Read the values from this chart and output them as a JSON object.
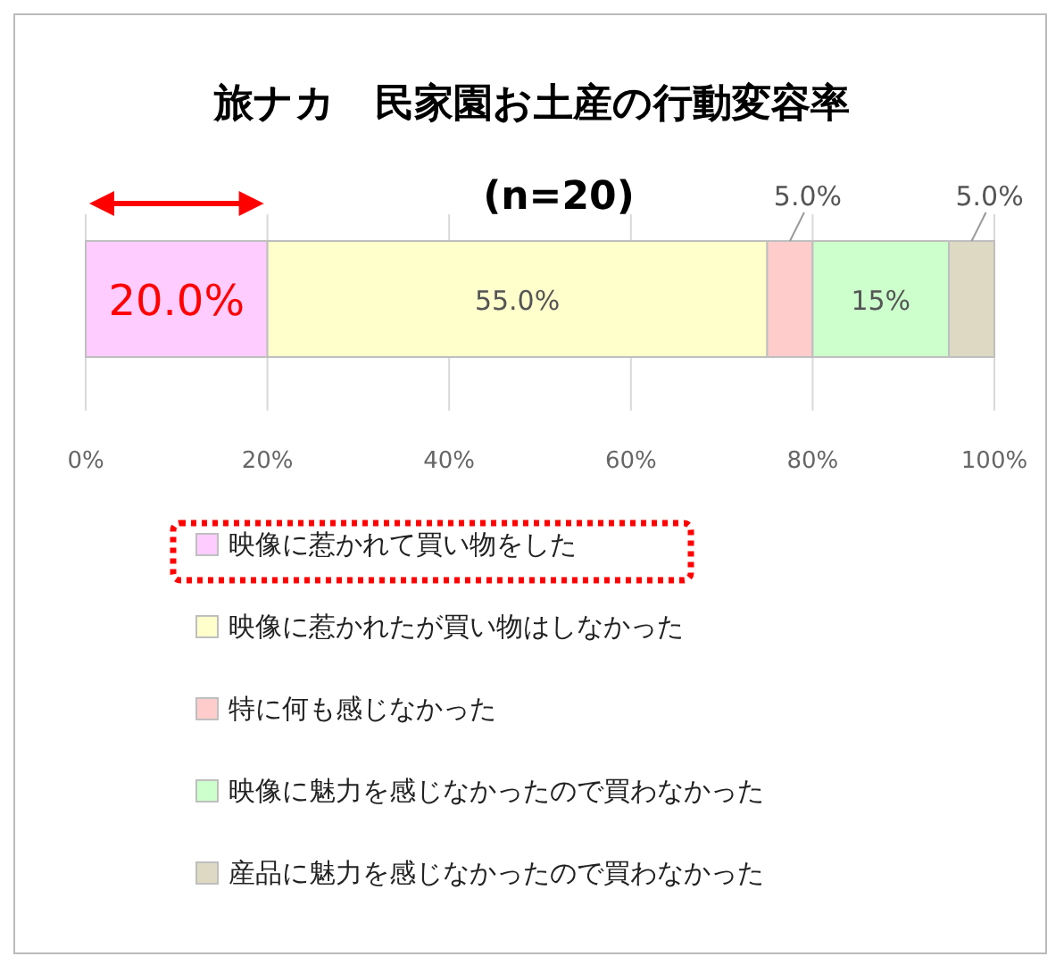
{
  "chart_data": {
    "type": "bar",
    "orientation": "horizontal",
    "stacked": true,
    "title": "旅ナカ　民家園お土産の行動変容率",
    "subtitle": "(n=20)",
    "categories": [
      null
    ],
    "series": [
      {
        "name": "映像に惹かれて買い物をした",
        "color": "#ffccff",
        "values": [
          20
        ],
        "value_labels": [
          "20.0%"
        ]
      },
      {
        "name": "映像に惹かれたが買い物はしなかった",
        "color": "#ffffcc",
        "values": [
          55
        ],
        "value_labels": [
          "55.0%"
        ]
      },
      {
        "name": "特に何も感じなかった",
        "color": "#ffcccc",
        "values": [
          5
        ],
        "value_labels": [
          "5.0%"
        ]
      },
      {
        "name": "映像に魅力を感じなかったので買わなかった",
        "color": "#ccffcc",
        "values": [
          15
        ],
        "value_labels": [
          "15%"
        ]
      },
      {
        "name": "産品に魅力を感じなかったので買わなかった",
        "color": "#ddd9c3",
        "values": [
          5
        ],
        "value_labels": [
          "5.0%"
        ]
      }
    ],
    "xlim": [
      0,
      100
    ],
    "xticks": [
      {
        "value": 0,
        "label": "0%"
      },
      {
        "value": 20,
        "label": "20%"
      },
      {
        "value": 40,
        "label": "40%"
      },
      {
        "value": 60,
        "label": "60%"
      },
      {
        "value": 80,
        "label": "80%"
      },
      {
        "value": 100,
        "label": "100%"
      }
    ],
    "grid": "x",
    "legend": "bottom"
  }
}
